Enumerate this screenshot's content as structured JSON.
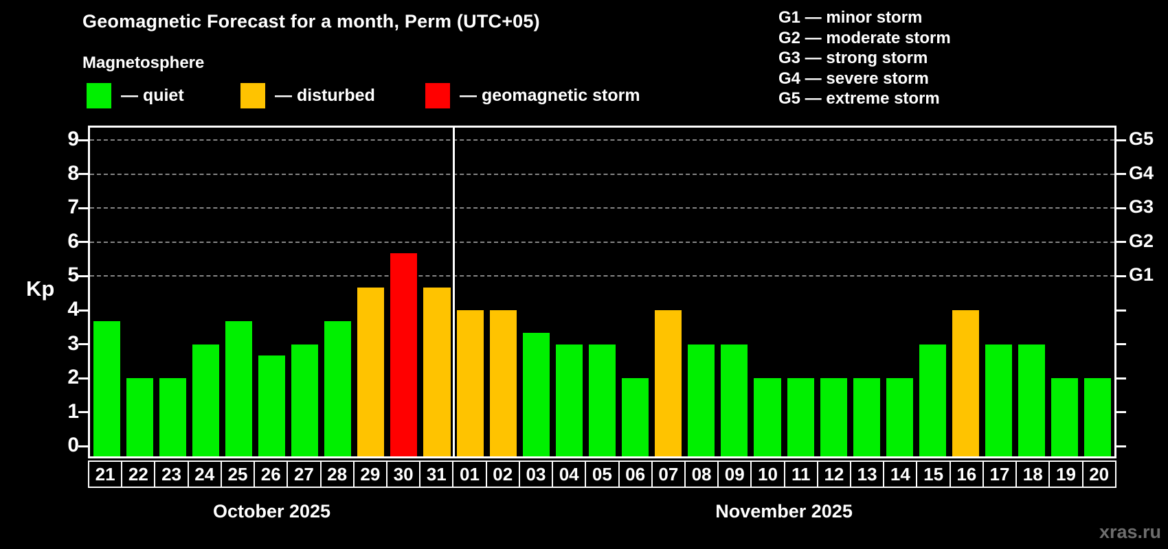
{
  "title": "Geomagnetic Forecast for a month, Perm (UTC+05)",
  "subtitle": "Magnetosphere",
  "legend": [
    {
      "label": "— quiet",
      "status": "quiet"
    },
    {
      "label": "— disturbed",
      "status": "disturbed"
    },
    {
      "label": "— geomagnetic storm",
      "status": "storm"
    }
  ],
  "colors": {
    "quiet": "#00f000",
    "disturbed": "#ffc300",
    "storm": "#ff0000",
    "background": "#000000",
    "axis": "#ffffff",
    "grid": "#9f9f9f"
  },
  "storm_scale": [
    "G1 — minor storm",
    "G2 — moderate storm",
    "G3 — strong storm",
    "G4 — severe storm",
    "G5 — extreme storm"
  ],
  "watermark": "xras.ru",
  "chart_data": {
    "type": "bar",
    "title": "Geomagnetic Forecast for a month, Perm (UTC+05)",
    "ylabel": "Kp",
    "ylim": [
      -0.3,
      9.37
    ],
    "yticks": [
      0,
      1,
      2,
      3,
      4,
      5,
      6,
      7,
      8,
      9
    ],
    "gridlines": [
      5,
      6,
      7,
      8,
      9
    ],
    "grid_style": "dashed",
    "legend_position": "top-left",
    "right_axis_labels": [
      {
        "label": "G1",
        "kp": 5
      },
      {
        "label": "G2",
        "kp": 6
      },
      {
        "label": "G3",
        "kp": 7
      },
      {
        "label": "G4",
        "kp": 8
      },
      {
        "label": "G5",
        "kp": 9
      }
    ],
    "categories": [
      "21",
      "22",
      "23",
      "24",
      "25",
      "26",
      "27",
      "28",
      "29",
      "30",
      "31",
      "01",
      "02",
      "03",
      "04",
      "05",
      "06",
      "07",
      "08",
      "09",
      "10",
      "11",
      "12",
      "13",
      "14",
      "15",
      "16",
      "17",
      "18",
      "19",
      "20"
    ],
    "values": [
      3.67,
      2,
      2,
      3,
      3.67,
      2.67,
      3,
      3.67,
      4.67,
      5.67,
      4.67,
      4,
      4,
      3.33,
      3,
      3,
      2,
      4,
      3,
      3,
      2,
      2,
      2,
      2,
      2,
      3,
      4,
      3,
      3,
      2,
      2
    ],
    "statuses": [
      "quiet",
      "quiet",
      "quiet",
      "quiet",
      "quiet",
      "quiet",
      "quiet",
      "quiet",
      "disturbed",
      "storm",
      "disturbed",
      "disturbed",
      "disturbed",
      "quiet",
      "quiet",
      "quiet",
      "quiet",
      "disturbed",
      "quiet",
      "quiet",
      "quiet",
      "quiet",
      "quiet",
      "quiet",
      "quiet",
      "quiet",
      "disturbed",
      "quiet",
      "quiet",
      "quiet",
      "quiet"
    ],
    "months": [
      {
        "label": "October 2025",
        "start": 0,
        "count": 11
      },
      {
        "label": "November 2025",
        "start": 11,
        "count": 20
      }
    ]
  }
}
